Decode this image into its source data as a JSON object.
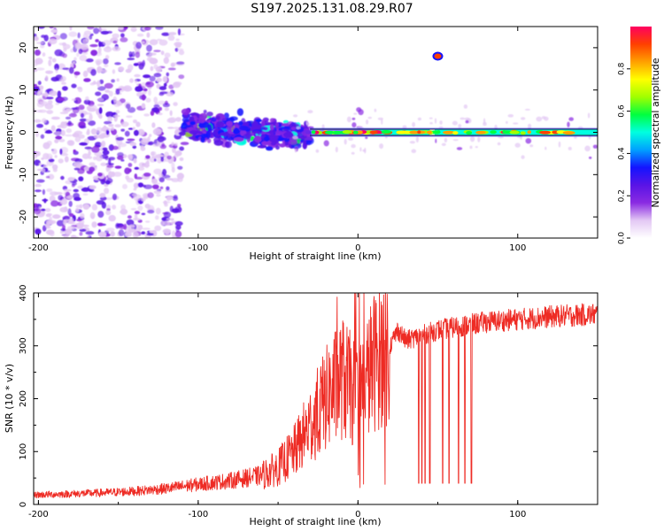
{
  "title": "S197.2025.131.08.29.R07",
  "colors": {
    "snr_line": "#ee2b24",
    "axis": "#000000",
    "center_line": "#000000"
  },
  "chart_data": [
    {
      "type": "heatmap",
      "name": "spectrogram",
      "xlabel": "Height of straight line (km)",
      "ylabel": "Frequency (Hz)",
      "xlim": [
        -203,
        150
      ],
      "ylim": [
        -25,
        25
      ],
      "xticks": [
        -200,
        -100,
        0,
        100
      ],
      "yticks": [
        -20,
        -10,
        0,
        10,
        20
      ],
      "colorbar": {
        "label": "Normalized spectral amplitude",
        "range": [
          0,
          1
        ],
        "ticks": [
          0.0,
          0.2,
          0.4,
          0.6,
          0.8
        ],
        "tick_labels": [
          "0.0",
          "0.2",
          "0.4",
          "0.6",
          "0.8"
        ],
        "colormap": [
          "#ffffff",
          "#e3c8f4",
          "#8a2be2",
          "#5a14e6",
          "#1414ff",
          "#00a0ff",
          "#00ffe0",
          "#00ff40",
          "#a0ff00",
          "#ffff00",
          "#ffa000",
          "#ff4000",
          "#ff0060"
        ]
      },
      "features": [
        {
          "label": "scatter noise",
          "x_range": [
            -203,
            -110
          ],
          "freq_range": [
            -25,
            25
          ],
          "amplitude": 0.15
        },
        {
          "label": "clustered blobs",
          "x_range": [
            -110,
            -30
          ],
          "freq_range": [
            -8,
            8
          ],
          "amplitude": 0.3
        },
        {
          "label": "carrier line",
          "x_range": [
            -30,
            150
          ],
          "freq": 0,
          "amplitude": 0.9
        },
        {
          "label": "side tone",
          "x": 50,
          "freq": 18,
          "amplitude": 0.95
        }
      ]
    },
    {
      "type": "line",
      "name": "snr",
      "xlabel": "Height of straight line (km)",
      "ylabel": "SNR (10 * v/v)",
      "xlim": [
        -203,
        150
      ],
      "ylim": [
        0,
        400
      ],
      "xticks": [
        -200,
        -100,
        0,
        100
      ],
      "yticks": [
        0,
        100,
        200,
        300,
        400
      ],
      "series": [
        {
          "name": "SNR",
          "x": [
            -203,
            -180,
            -160,
            -140,
            -120,
            -100,
            -80,
            -60,
            -50,
            -40,
            -30,
            -20,
            -10,
            0,
            10,
            20,
            25,
            30,
            40,
            50,
            60,
            70,
            80,
            100,
            120,
            150
          ],
          "y": [
            18,
            20,
            22,
            25,
            30,
            38,
            45,
            55,
            70,
            100,
            150,
            200,
            240,
            200,
            270,
            300,
            330,
            310,
            320,
            330,
            335,
            340,
            345,
            350,
            355,
            360
          ]
        }
      ],
      "dropouts_x": [
        38,
        40,
        42,
        45,
        53,
        57,
        63,
        67,
        71
      ],
      "dropout_floor": 40
    }
  ]
}
